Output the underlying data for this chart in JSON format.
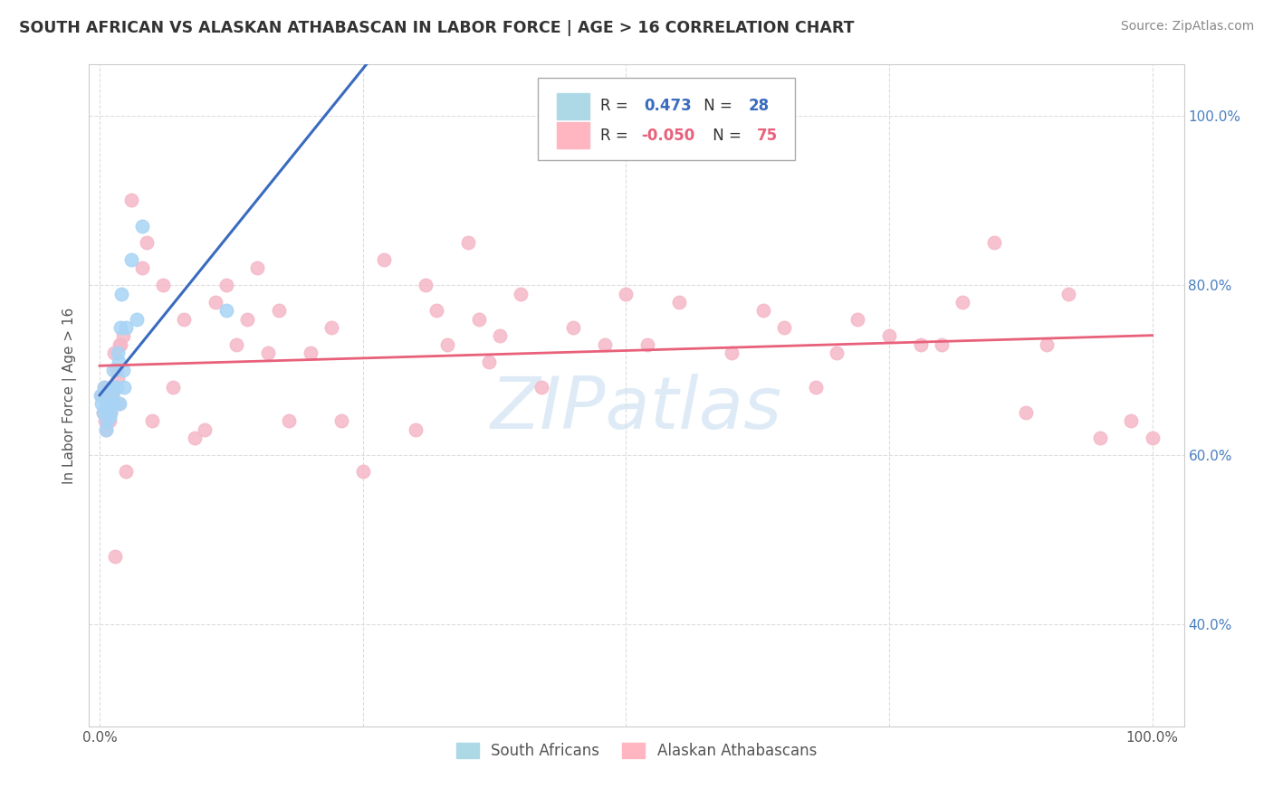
{
  "title": "SOUTH AFRICAN VS ALASKAN ATHABASCAN IN LABOR FORCE | AGE > 16 CORRELATION CHART",
  "source": "Source: ZipAtlas.com",
  "ylabel": "In Labor Force | Age > 16",
  "r_blue": 0.473,
  "n_blue": 28,
  "r_pink": -0.05,
  "n_pink": 75,
  "blue_scatter_x": [
    0.001,
    0.002,
    0.003,
    0.004,
    0.005,
    0.006,
    0.007,
    0.008,
    0.009,
    0.01,
    0.011,
    0.012,
    0.013,
    0.014,
    0.015,
    0.016,
    0.017,
    0.018,
    0.019,
    0.02,
    0.021,
    0.022,
    0.023,
    0.025,
    0.03,
    0.035,
    0.04,
    0.12
  ],
  "blue_scatter_y": [
    0.67,
    0.66,
    0.65,
    0.68,
    0.655,
    0.63,
    0.64,
    0.66,
    0.645,
    0.65,
    0.66,
    0.67,
    0.7,
    0.68,
    0.66,
    0.68,
    0.72,
    0.71,
    0.66,
    0.75,
    0.79,
    0.7,
    0.68,
    0.75,
    0.83,
    0.76,
    0.87,
    0.77
  ],
  "pink_scatter_x": [
    0.002,
    0.003,
    0.004,
    0.005,
    0.006,
    0.007,
    0.008,
    0.009,
    0.01,
    0.011,
    0.012,
    0.013,
    0.014,
    0.015,
    0.016,
    0.017,
    0.018,
    0.019,
    0.02,
    0.022,
    0.025,
    0.03,
    0.04,
    0.045,
    0.05,
    0.06,
    0.07,
    0.08,
    0.09,
    0.1,
    0.11,
    0.12,
    0.13,
    0.14,
    0.15,
    0.16,
    0.17,
    0.18,
    0.2,
    0.22,
    0.23,
    0.25,
    0.27,
    0.3,
    0.31,
    0.32,
    0.33,
    0.35,
    0.36,
    0.37,
    0.38,
    0.4,
    0.42,
    0.45,
    0.48,
    0.5,
    0.52,
    0.55,
    0.6,
    0.63,
    0.65,
    0.68,
    0.7,
    0.72,
    0.75,
    0.78,
    0.8,
    0.82,
    0.85,
    0.88,
    0.9,
    0.92,
    0.95,
    0.98,
    1.0
  ],
  "pink_scatter_y": [
    0.67,
    0.65,
    0.68,
    0.64,
    0.63,
    0.67,
    0.66,
    0.64,
    0.65,
    0.66,
    0.67,
    0.68,
    0.72,
    0.48,
    0.7,
    0.69,
    0.66,
    0.73,
    0.73,
    0.74,
    0.58,
    0.9,
    0.82,
    0.85,
    0.64,
    0.8,
    0.68,
    0.76,
    0.62,
    0.63,
    0.78,
    0.8,
    0.73,
    0.76,
    0.82,
    0.72,
    0.77,
    0.64,
    0.72,
    0.75,
    0.64,
    0.58,
    0.83,
    0.63,
    0.8,
    0.77,
    0.73,
    0.85,
    0.76,
    0.71,
    0.74,
    0.79,
    0.68,
    0.75,
    0.73,
    0.79,
    0.73,
    0.78,
    0.72,
    0.77,
    0.75,
    0.68,
    0.72,
    0.76,
    0.74,
    0.73,
    0.73,
    0.78,
    0.85,
    0.65,
    0.73,
    0.79,
    0.62,
    0.64,
    0.62
  ],
  "blue_color": "#a8d4f5",
  "pink_color": "#f5b8c8",
  "blue_line_color": "#3a6bbf",
  "pink_line_color": "#e8607a",
  "watermark_color": "#c8dff0",
  "background_color": "#ffffff",
  "grid_color": "#dddddd",
  "ytick_color": "#4a7fc1",
  "xtick_color": "#555555",
  "title_color": "#333333",
  "source_color": "#888888",
  "label_color": "#555555"
}
